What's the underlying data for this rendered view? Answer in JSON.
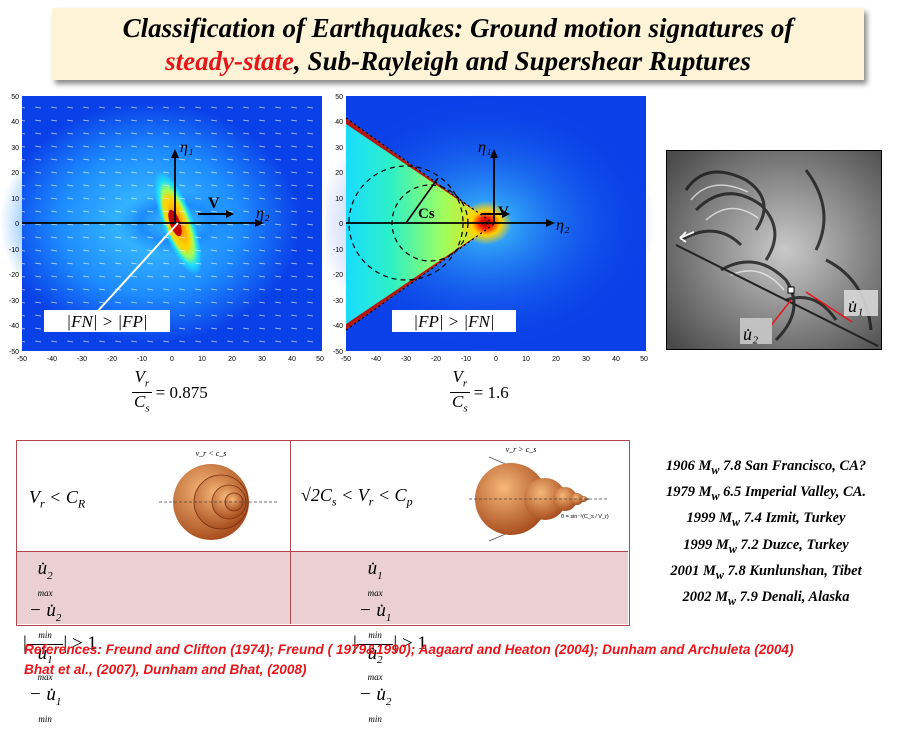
{
  "title": {
    "line1": "Classification of Earthquakes: Ground motion signatures of",
    "line2_red": "steady-state",
    "line2_rest": ", Sub-Rayleigh and Supershear Ruptures"
  },
  "plot1": {
    "y_ticks": [
      "50",
      "40",
      "30",
      "20",
      "10",
      "0",
      "-10",
      "-20",
      "-30",
      "-40",
      "-50"
    ],
    "x_ticks": [
      "-50",
      "-40",
      "-30",
      "-20",
      "-10",
      "0",
      "10",
      "20",
      "30",
      "40",
      "50"
    ],
    "eta1": "η₁",
    "eta2": "η₂",
    "v": "V",
    "label": "|FN| > |FP|",
    "ratio_num": "V",
    "ratio_num_sub": "r",
    "ratio_den": "C",
    "ratio_den_sub": "s",
    "ratio_value": "= 0.875"
  },
  "plot2": {
    "y_ticks": [
      "50",
      "40",
      "30",
      "20",
      "10",
      "0",
      "-10",
      "-20",
      "-30",
      "-40",
      "-50"
    ],
    "x_ticks": [
      "-50",
      "-40",
      "-30",
      "-20",
      "-10",
      "0",
      "10",
      "20",
      "30",
      "40",
      "50"
    ],
    "eta1": "η₁",
    "eta2": "η₂",
    "v": "V",
    "cs": "Cs",
    "label": "|FP| > |FN|",
    "ratio_num": "V",
    "ratio_num_sub": "r",
    "ratio_den": "C",
    "ratio_den_sub": "s",
    "ratio_value": "= 1.6"
  },
  "photo": {
    "u1": "u̇₁",
    "u2": "u̇₂"
  },
  "table": {
    "left_condition": "V_r < C_R",
    "left_icon_label": "v_r < c_s",
    "right_condition": "√2C_s < V_r < C_p",
    "right_icon_label": "v_r > c_s",
    "right_angle_label": "θ = sin⁻¹(C_s / V_r)",
    "left_ratio_value": "> 1",
    "right_ratio_value": "> 1"
  },
  "earthquakes": [
    {
      "year": "1906",
      "mag": "7.8",
      "place": "San Francisco, CA?"
    },
    {
      "year": "1979",
      "mag": "6.5",
      "place": "Imperial Valley, CA."
    },
    {
      "year": "1999",
      "mag": "7.4",
      "place": "Izmit, Turkey"
    },
    {
      "year": "1999",
      "mag": "7.2",
      "place": "Duzce, Turkey"
    },
    {
      "year": "2001",
      "mag": "7.8",
      "place": "Kunlunshan, Tibet"
    },
    {
      "year": "2002",
      "mag": "7.9",
      "place": "Denali, Alaska"
    }
  ],
  "mw_label": "M",
  "mw_sub": "w",
  "references": {
    "line1": "References: Freund and Clifton (1974); Freund ( 1979&1990);  Aagaard and Heaton (2004); Dunham and Archuleta (2004)",
    "line2": "Bhat et al., (2007), Dunham and Bhat, (2008)"
  },
  "colors": {
    "title_bg": "#fdf3d6",
    "accent_red": "#e8151b",
    "table_border": "#b5464e",
    "table_pink": "#ead0d3"
  }
}
